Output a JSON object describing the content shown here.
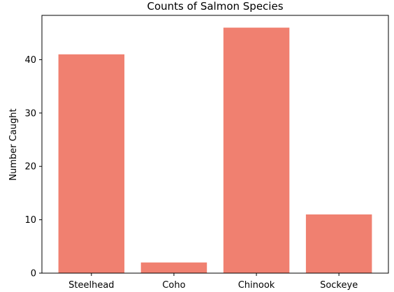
{
  "chart_data": {
    "type": "bar",
    "title": "Counts of Salmon Species",
    "xlabel": "",
    "ylabel": "Number Caught",
    "categories": [
      "Steelhead",
      "Coho",
      "Chinook",
      "Sockeye"
    ],
    "values": [
      41,
      2,
      46,
      11
    ],
    "ylim": [
      0,
      48.3
    ],
    "yticks": [
      0,
      10,
      20,
      30,
      40
    ],
    "bar_color": "#F08070",
    "grid": false,
    "legend": "none"
  }
}
